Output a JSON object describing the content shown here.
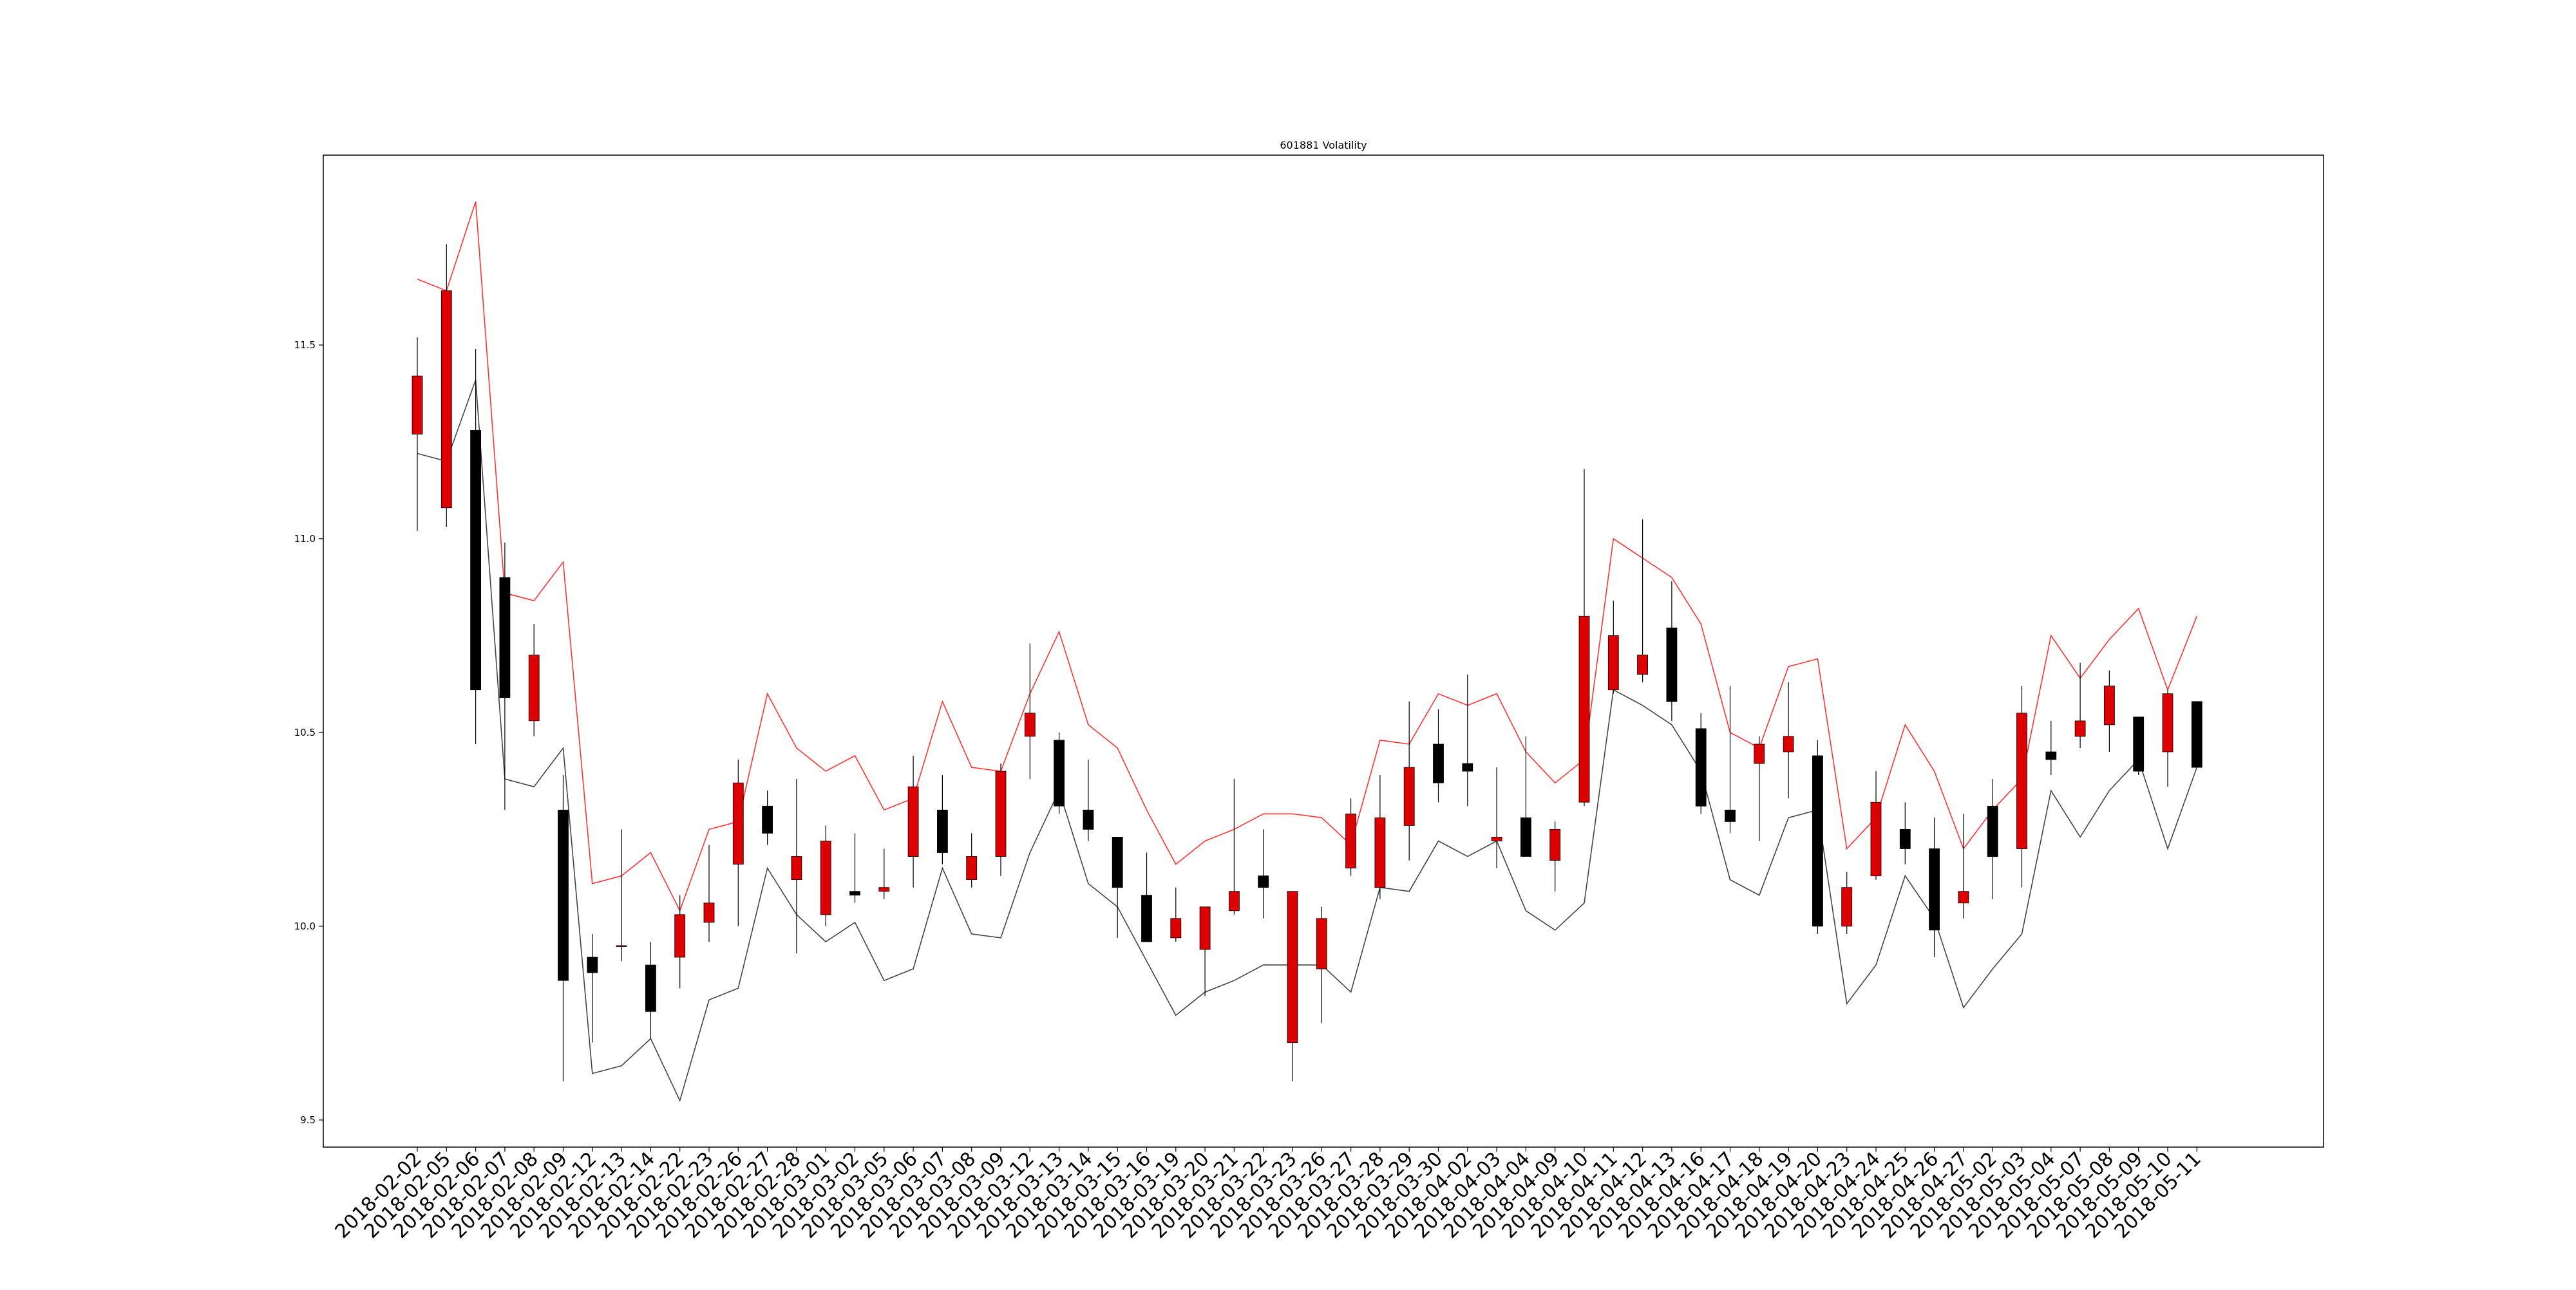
{
  "chart_data": {
    "type": "candlestick",
    "title": "601881 Volatility",
    "xlabel": "",
    "ylabel": "",
    "ylim": [
      9.43,
      11.99
    ],
    "yticks": [
      9.5,
      10.0,
      10.5,
      11.0,
      11.5
    ],
    "ytick_labels": [
      "9.5",
      "10.0",
      "10.5",
      "11.0",
      "11.5"
    ],
    "grid": false,
    "legend": "none",
    "colors": {
      "up": "#dd0000",
      "down": "#000000",
      "upper_band": "#ff3333",
      "lower_band": "#444444",
      "wick": "#000000"
    },
    "categories": [
      "2018-02-02",
      "2018-02-05",
      "2018-02-06",
      "2018-02-07",
      "2018-02-08",
      "2018-02-09",
      "2018-02-12",
      "2018-02-13",
      "2018-02-14",
      "2018-02-22",
      "2018-02-23",
      "2018-02-26",
      "2018-02-27",
      "2018-02-28",
      "2018-03-01",
      "2018-03-02",
      "2018-03-05",
      "2018-03-06",
      "2018-03-07",
      "2018-03-08",
      "2018-03-09",
      "2018-03-12",
      "2018-03-13",
      "2018-03-14",
      "2018-03-15",
      "2018-03-16",
      "2018-03-19",
      "2018-03-20",
      "2018-03-21",
      "2018-03-22",
      "2018-03-23",
      "2018-03-26",
      "2018-03-27",
      "2018-03-28",
      "2018-03-29",
      "2018-03-30",
      "2018-04-02",
      "2018-04-03",
      "2018-04-04",
      "2018-04-09",
      "2018-04-10",
      "2018-04-11",
      "2018-04-12",
      "2018-04-13",
      "2018-04-16",
      "2018-04-17",
      "2018-04-18",
      "2018-04-19",
      "2018-04-20",
      "2018-04-23",
      "2018-04-24",
      "2018-04-25",
      "2018-04-26",
      "2018-04-27",
      "2018-05-02",
      "2018-05-03",
      "2018-05-04",
      "2018-05-07",
      "2018-05-08",
      "2018-05-09",
      "2018-05-10",
      "2018-05-11"
    ],
    "candles": [
      {
        "open": 11.27,
        "close": 11.42,
        "high": 11.52,
        "low": 11.02
      },
      {
        "open": 11.08,
        "close": 11.64,
        "high": 11.76,
        "low": 11.03
      },
      {
        "open": 11.28,
        "close": 10.61,
        "high": 11.49,
        "low": 10.47
      },
      {
        "open": 10.9,
        "close": 10.59,
        "high": 10.99,
        "low": 10.3
      },
      {
        "open": 10.53,
        "close": 10.7,
        "high": 10.78,
        "low": 10.49
      },
      {
        "open": 10.3,
        "close": 9.86,
        "high": 10.39,
        "low": 9.6
      },
      {
        "open": 9.92,
        "close": 9.88,
        "high": 9.98,
        "low": 9.7
      },
      {
        "open": 9.95,
        "close": 9.95,
        "high": 10.25,
        "low": 9.91
      },
      {
        "open": 9.9,
        "close": 9.78,
        "high": 9.96,
        "low": 9.71
      },
      {
        "open": 9.92,
        "close": 10.03,
        "high": 10.08,
        "low": 9.84
      },
      {
        "open": 10.01,
        "close": 10.06,
        "high": 10.21,
        "low": 9.96
      },
      {
        "open": 10.16,
        "close": 10.37,
        "high": 10.43,
        "low": 10.0
      },
      {
        "open": 10.31,
        "close": 10.24,
        "high": 10.35,
        "low": 10.21
      },
      {
        "open": 10.12,
        "close": 10.18,
        "high": 10.38,
        "low": 9.93
      },
      {
        "open": 10.03,
        "close": 10.22,
        "high": 10.26,
        "low": 10.0
      },
      {
        "open": 10.09,
        "close": 10.08,
        "high": 10.24,
        "low": 10.06
      },
      {
        "open": 10.09,
        "close": 10.1,
        "high": 10.2,
        "low": 10.07
      },
      {
        "open": 10.18,
        "close": 10.36,
        "high": 10.44,
        "low": 10.1
      },
      {
        "open": 10.3,
        "close": 10.19,
        "high": 10.39,
        "low": 10.16
      },
      {
        "open": 10.12,
        "close": 10.18,
        "high": 10.24,
        "low": 10.1
      },
      {
        "open": 10.18,
        "close": 10.4,
        "high": 10.42,
        "low": 10.13
      },
      {
        "open": 10.49,
        "close": 10.55,
        "high": 10.73,
        "low": 10.38
      },
      {
        "open": 10.48,
        "close": 10.31,
        "high": 10.5,
        "low": 10.29
      },
      {
        "open": 10.3,
        "close": 10.25,
        "high": 10.43,
        "low": 10.22
      },
      {
        "open": 10.23,
        "close": 10.1,
        "high": 10.23,
        "low": 9.97
      },
      {
        "open": 10.08,
        "close": 9.96,
        "high": 10.19,
        "low": 9.96
      },
      {
        "open": 9.97,
        "close": 10.02,
        "high": 10.1,
        "low": 9.96
      },
      {
        "open": 9.94,
        "close": 10.05,
        "high": 10.05,
        "low": 9.82
      },
      {
        "open": 10.04,
        "close": 10.09,
        "high": 10.38,
        "low": 10.03
      },
      {
        "open": 10.13,
        "close": 10.1,
        "high": 10.25,
        "low": 10.02
      },
      {
        "open": 9.7,
        "close": 10.09,
        "high": 10.09,
        "low": 9.6
      },
      {
        "open": 9.89,
        "close": 10.02,
        "high": 10.05,
        "low": 9.75
      },
      {
        "open": 10.15,
        "close": 10.29,
        "high": 10.33,
        "low": 10.13
      },
      {
        "open": 10.1,
        "close": 10.28,
        "high": 10.39,
        "low": 10.07
      },
      {
        "open": 10.26,
        "close": 10.41,
        "high": 10.58,
        "low": 10.17
      },
      {
        "open": 10.47,
        "close": 10.37,
        "high": 10.56,
        "low": 10.32
      },
      {
        "open": 10.42,
        "close": 10.4,
        "high": 10.65,
        "low": 10.31
      },
      {
        "open": 10.22,
        "close": 10.23,
        "high": 10.41,
        "low": 10.15
      },
      {
        "open": 10.28,
        "close": 10.18,
        "high": 10.49,
        "low": 10.18
      },
      {
        "open": 10.17,
        "close": 10.25,
        "high": 10.27,
        "low": 10.09
      },
      {
        "open": 10.32,
        "close": 10.8,
        "high": 11.18,
        "low": 10.31
      },
      {
        "open": 10.61,
        "close": 10.75,
        "high": 10.84,
        "low": 10.6
      },
      {
        "open": 10.65,
        "close": 10.7,
        "high": 11.05,
        "low": 10.63
      },
      {
        "open": 10.77,
        "close": 10.58,
        "high": 10.89,
        "low": 10.53
      },
      {
        "open": 10.51,
        "close": 10.31,
        "high": 10.55,
        "low": 10.29
      },
      {
        "open": 10.3,
        "close": 10.27,
        "high": 10.62,
        "low": 10.24
      },
      {
        "open": 10.42,
        "close": 10.47,
        "high": 10.49,
        "low": 10.22
      },
      {
        "open": 10.45,
        "close": 10.49,
        "high": 10.63,
        "low": 10.33
      },
      {
        "open": 10.44,
        "close": 10.0,
        "high": 10.48,
        "low": 9.98
      },
      {
        "open": 10.0,
        "close": 10.1,
        "high": 10.14,
        "low": 9.98
      },
      {
        "open": 10.13,
        "close": 10.32,
        "high": 10.4,
        "low": 10.12
      },
      {
        "open": 10.25,
        "close": 10.2,
        "high": 10.32,
        "low": 10.16
      },
      {
        "open": 10.2,
        "close": 9.99,
        "high": 10.28,
        "low": 9.92
      },
      {
        "open": 10.06,
        "close": 10.09,
        "high": 10.29,
        "low": 10.02
      },
      {
        "open": 10.31,
        "close": 10.18,
        "high": 10.38,
        "low": 10.07
      },
      {
        "open": 10.2,
        "close": 10.55,
        "high": 10.62,
        "low": 10.1
      },
      {
        "open": 10.45,
        "close": 10.43,
        "high": 10.53,
        "low": 10.39
      },
      {
        "open": 10.49,
        "close": 10.53,
        "high": 10.68,
        "low": 10.46
      },
      {
        "open": 10.52,
        "close": 10.62,
        "high": 10.66,
        "low": 10.45
      },
      {
        "open": 10.54,
        "close": 10.4,
        "high": 10.54,
        "low": 10.39
      },
      {
        "open": 10.45,
        "close": 10.6,
        "high": 10.61,
        "low": 10.36
      },
      {
        "open": 10.58,
        "close": 10.41,
        "high": 10.58,
        "low": 10.41
      }
    ],
    "series": [
      {
        "values": [
          11.67,
          11.64,
          11.87,
          10.86,
          10.84,
          10.94,
          10.11,
          10.13,
          10.19,
          10.04,
          10.25,
          10.27,
          10.6,
          10.46,
          10.4,
          10.44,
          10.3,
          10.33,
          10.58,
          10.41,
          10.4,
          10.6,
          10.76,
          10.52,
          10.46,
          10.3,
          10.16,
          10.22,
          10.25,
          10.29,
          10.29,
          10.28,
          10.21,
          10.48,
          10.47,
          10.6,
          10.57,
          10.6,
          10.45,
          10.37,
          10.43,
          11.0,
          10.95,
          10.9,
          10.78,
          10.5,
          10.46,
          10.67,
          10.69,
          10.2,
          10.28,
          10.52,
          10.4,
          10.2,
          10.3,
          10.38,
          10.75,
          10.64,
          10.74,
          10.82,
          10.61,
          10.8
        ]
      },
      {
        "values": [
          11.22,
          11.2,
          11.41,
          10.38,
          10.36,
          10.46,
          9.62,
          9.64,
          9.71,
          9.55,
          9.81,
          9.84,
          10.15,
          10.03,
          9.96,
          10.01,
          9.86,
          9.89,
          10.15,
          9.98,
          9.97,
          10.19,
          10.35,
          10.11,
          10.05,
          9.91,
          9.77,
          9.83,
          9.86,
          9.9,
          9.9,
          9.9,
          9.83,
          10.1,
          10.09,
          10.22,
          10.18,
          10.22,
          10.04,
          9.99,
          10.06,
          10.61,
          10.57,
          10.52,
          10.4,
          10.12,
          10.08,
          10.28,
          10.3,
          9.8,
          9.9,
          10.13,
          10.02,
          9.79,
          9.89,
          9.98,
          10.35,
          10.23,
          10.35,
          10.43,
          10.2,
          10.41
        ]
      }
    ]
  }
}
